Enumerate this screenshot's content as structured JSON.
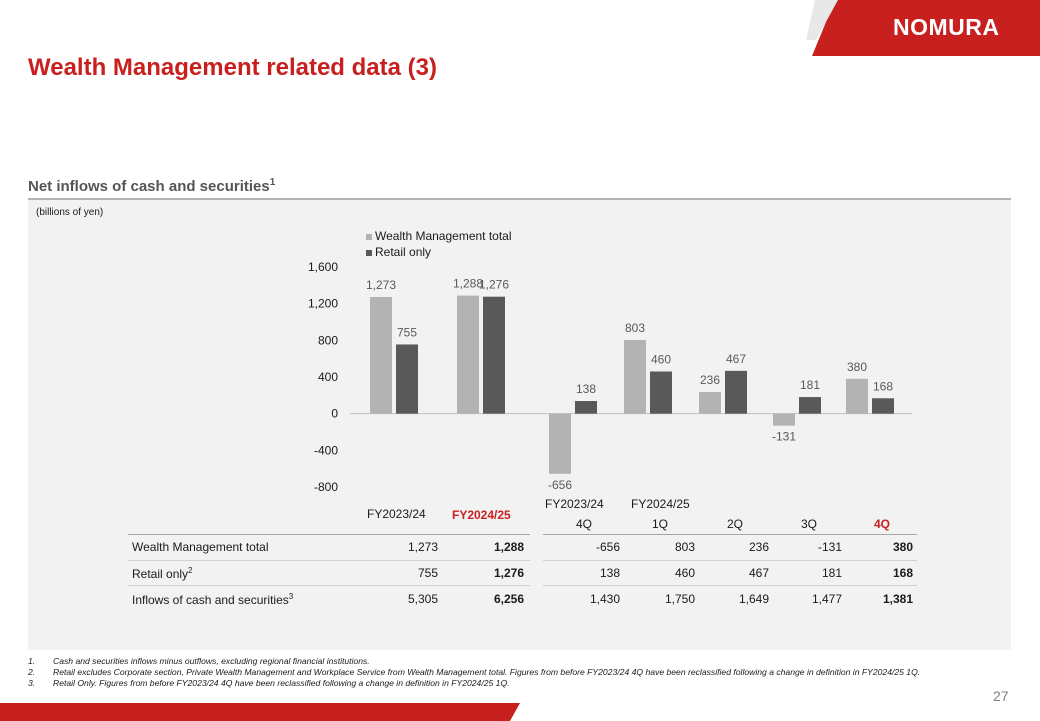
{
  "brand": {
    "logo_text": "NOMURA",
    "color": "#c8201f"
  },
  "page_title": "Wealth Management related data (3)",
  "section": {
    "title": "Net inflows of cash and securities",
    "title_sup": "1"
  },
  "unit_note": "(billions of yen)",
  "page_number": "27",
  "legend": [
    {
      "label": "Wealth Management total",
      "color": "#b3b3b3"
    },
    {
      "label": "Retail only",
      "color": "#595959"
    }
  ],
  "chart_data": {
    "type": "bar",
    "categories": [
      "FY2023/24",
      "FY2024/25",
      "FY2023/24 4Q",
      "FY2024/25 1Q",
      "FY2024/25 2Q",
      "FY2024/25 3Q",
      "FY2024/25 4Q"
    ],
    "series": [
      {
        "name": "Wealth Management total",
        "color": "#b3b3b3",
        "values": [
          1273,
          1288,
          -656,
          803,
          236,
          -131,
          380
        ],
        "labels": [
          "1,273",
          "1,288",
          "-656",
          "803",
          "236",
          "-131",
          "380"
        ]
      },
      {
        "name": "Retail only",
        "color": "#595959",
        "values": [
          755,
          1276,
          138,
          460,
          467,
          181,
          168
        ],
        "labels": [
          "755",
          "1,276",
          "138",
          "460",
          "467",
          "181",
          "168"
        ]
      }
    ],
    "ylim": [
      -800,
      1600
    ],
    "yticks": [
      -800,
      -400,
      0,
      400,
      800,
      1200,
      1600
    ],
    "ytick_labels": [
      "-800",
      "-400",
      "0",
      "400",
      "800",
      "1,200",
      "1,600"
    ],
    "grid": false
  },
  "table": {
    "headers": {
      "annual": [
        "FY2023/24",
        "FY2024/25"
      ],
      "quarter_group_1": "FY2023/24",
      "quarter_group_2": "FY2024/25",
      "quarters": [
        "4Q",
        "1Q",
        "2Q",
        "3Q",
        "4Q"
      ]
    },
    "rows": [
      {
        "label": "Wealth Management total",
        "sup": "",
        "values": [
          "1,273",
          "1,288",
          "-656",
          "803",
          "236",
          "-131",
          "380"
        ]
      },
      {
        "label": "Retail only",
        "sup": "2",
        "values": [
          "755",
          "1,276",
          "138",
          "460",
          "467",
          "181",
          "168"
        ]
      },
      {
        "label": "Inflows of cash and securities",
        "sup": "3",
        "values": [
          "5,305",
          "6,256",
          "1,430",
          "1,750",
          "1,649",
          "1,477",
          "1,381"
        ]
      }
    ]
  },
  "footnotes": [
    {
      "num": "1.",
      "text": "Cash and securities inflows minus outflows, excluding regional financial institutions."
    },
    {
      "num": "2.",
      "text": "Retail excludes Corporate section, Private Wealth Management and Workplace Service from Wealth Management total. Figures from before FY2023/24 4Q have been reclassified following a change in definition in FY2024/25 1Q."
    },
    {
      "num": "3.",
      "text": "Retail Only. Figures from before FY2023/24 4Q have been reclassified following a change in definition in FY2024/25 1Q."
    }
  ]
}
